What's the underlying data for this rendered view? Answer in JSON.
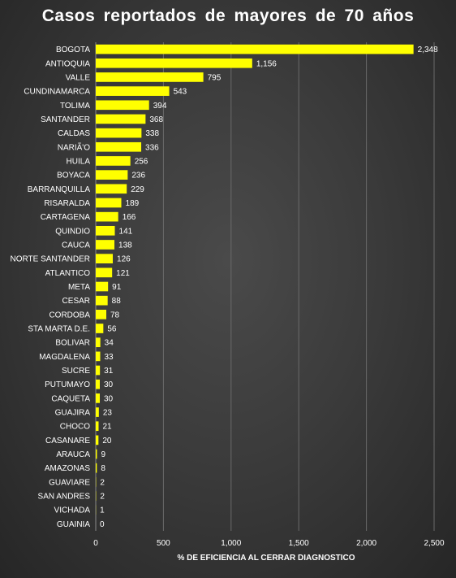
{
  "chart_data": {
    "type": "bar",
    "orientation": "horizontal",
    "title": "Casos reportados de mayores de 70 años",
    "xlabel": "% DE EFICIENCIA AL CERRAR DIAGNOSTICO",
    "ylabel": "",
    "xlim": [
      0,
      2500
    ],
    "xticks": [
      0,
      500,
      1000,
      1500,
      2000,
      2500
    ],
    "xtick_labels": [
      "0",
      "500",
      "1,000",
      "1,500",
      "2,000",
      "2,500"
    ],
    "grid": true,
    "legend": "none",
    "bar_color": "#ffff00",
    "categories": [
      "BOGOTA",
      "ANTIOQUIA",
      "VALLE",
      "CUNDINAMARCA",
      "TOLIMA",
      "SANTANDER",
      "CALDAS",
      "NARIÃ'O",
      "HUILA",
      "BOYACA",
      "BARRANQUILLA",
      "RISARALDA",
      "CARTAGENA",
      "QUINDIO",
      "CAUCA",
      "NORTE SANTANDER",
      "ATLANTICO",
      "META",
      "CESAR",
      "CORDOBA",
      "STA MARTA D.E.",
      "BOLIVAR",
      "MAGDALENA",
      "SUCRE",
      "PUTUMAYO",
      "CAQUETA",
      "GUAJIRA",
      "CHOCO",
      "CASANARE",
      "ARAUCA",
      "AMAZONAS",
      "GUAVIARE",
      "SAN ANDRES",
      "VICHADA",
      "GUAINIA"
    ],
    "values": [
      2348,
      1156,
      795,
      543,
      394,
      368,
      338,
      336,
      256,
      236,
      229,
      189,
      166,
      141,
      138,
      126,
      121,
      91,
      88,
      78,
      56,
      34,
      33,
      31,
      30,
      30,
      23,
      21,
      20,
      9,
      8,
      2,
      2,
      1,
      0
    ],
    "value_labels": [
      "2,348",
      "1,156",
      "795",
      "543",
      "394",
      "368",
      "338",
      "336",
      "256",
      "236",
      "229",
      "189",
      "166",
      "141",
      "138",
      "126",
      "121",
      "91",
      "88",
      "78",
      "56",
      "34",
      "33",
      "31",
      "30",
      "30",
      "23",
      "21",
      "20",
      "9",
      "8",
      "2",
      "2",
      "1",
      "0"
    ]
  }
}
